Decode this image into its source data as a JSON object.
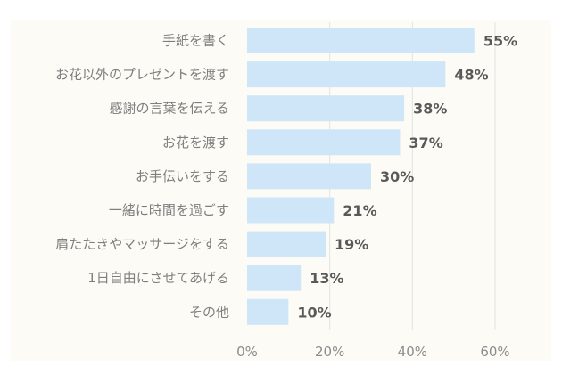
{
  "chart_data": {
    "type": "bar",
    "orientation": "horizontal",
    "categories": [
      "手紙を書く",
      "お花以外のプレゼントを渡す",
      "感謝の言葉を伝える",
      "お花を渡す",
      "お手伝いをする",
      "一緒に時間を過ごす",
      "肩たたきやマッサージをする",
      "1日自由にさせてあげる",
      "その他"
    ],
    "values": [
      55,
      48,
      38,
      37,
      30,
      21,
      19,
      13,
      10
    ],
    "value_labels": [
      "55%",
      "48%",
      "38%",
      "37%",
      "30%",
      "21%",
      "19%",
      "13%",
      "10%"
    ],
    "x_ticks": [
      0,
      20,
      40,
      60
    ],
    "x_tick_labels": [
      "0%",
      "20%",
      "40%",
      "60%"
    ],
    "xlim": [
      0,
      60
    ],
    "grid": true,
    "colors": {
      "background": "#fcfbf5",
      "bar": "#cfe6f8",
      "grid": "#e3e3e3",
      "category_text": "#7f7f7f",
      "value_text": "#595959",
      "tick_text": "#8c8c8c"
    }
  }
}
